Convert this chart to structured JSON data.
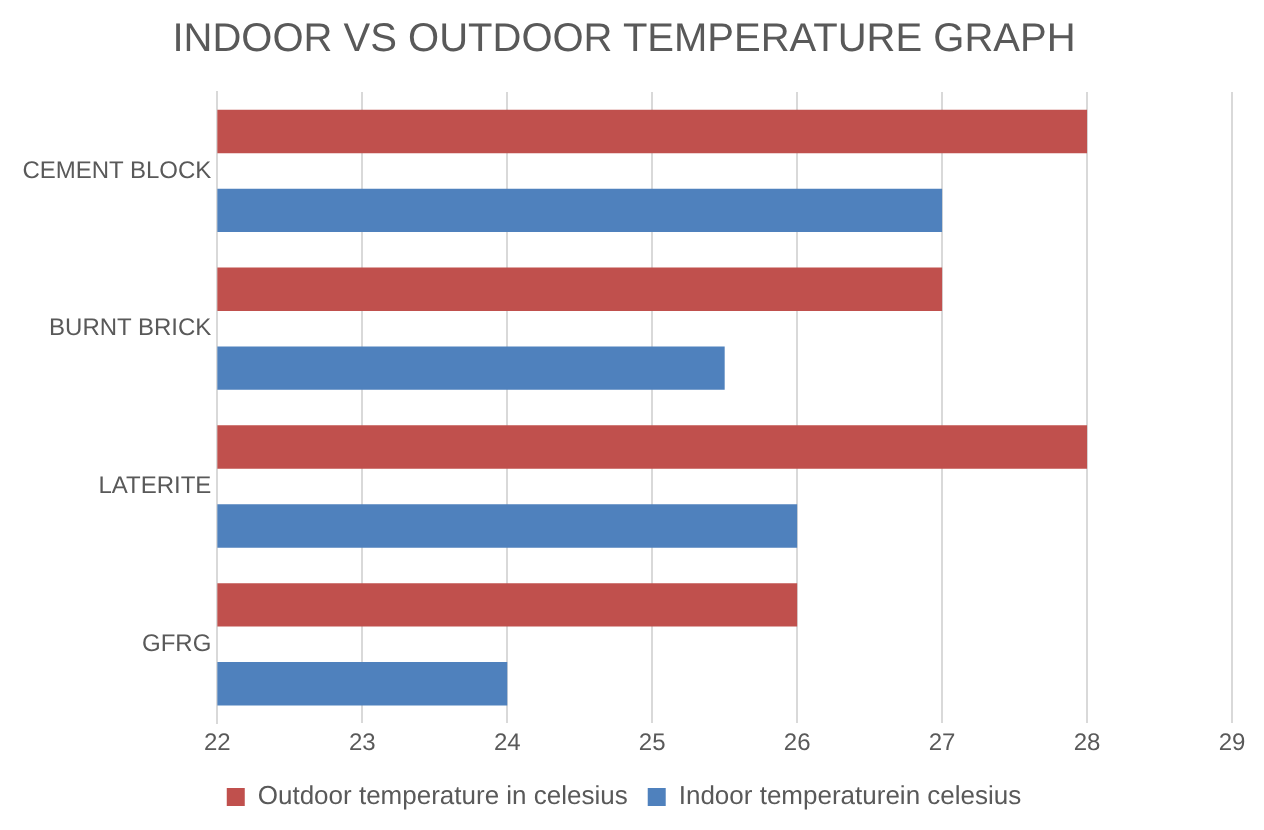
{
  "chart_data": {
    "type": "bar",
    "orientation": "horizontal",
    "title": "INDOOR VS OUTDOOR TEMPERATURE GRAPH",
    "categories": [
      "CEMENT BLOCK",
      "BURNT BRICK",
      "LATERITE",
      "GFRG"
    ],
    "series": [
      {
        "name": "Outdoor temperature in celesius",
        "color": "#c0504d",
        "values": [
          28,
          27,
          28,
          26
        ]
      },
      {
        "name": "Indoor temperaturein celesius",
        "color": "#4f81bd",
        "values": [
          27,
          25.5,
          26,
          24
        ]
      }
    ],
    "xlim": [
      22,
      29
    ],
    "xticks": [
      22,
      23,
      24,
      25,
      26,
      27,
      28,
      29
    ],
    "grid": "x",
    "legend": "bottom"
  }
}
